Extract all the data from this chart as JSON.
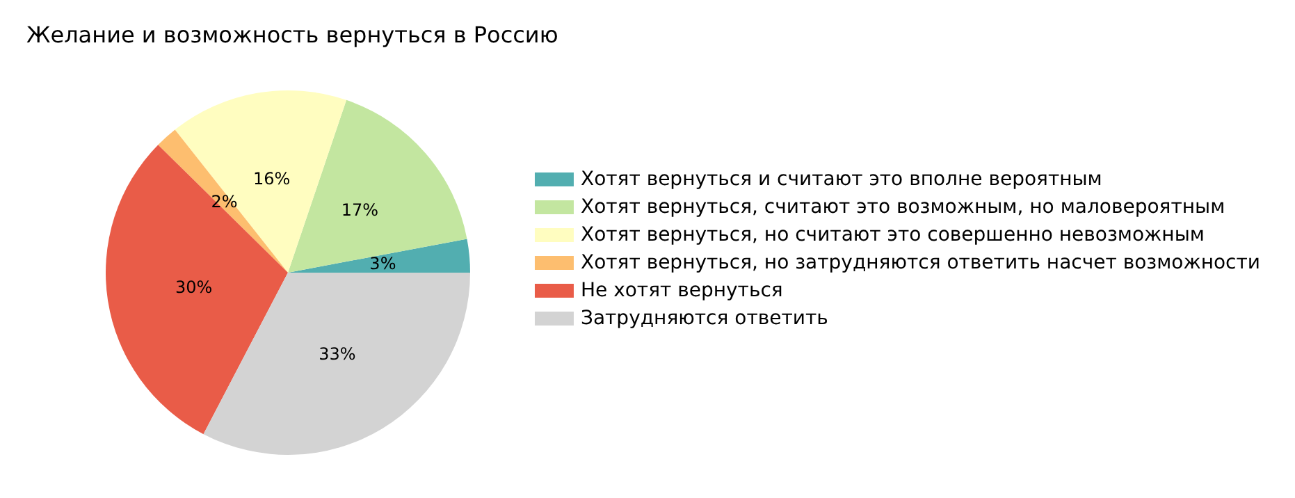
{
  "chart_data": {
    "type": "pie",
    "title": "Желание и возможность вернуться в Россию",
    "categories": [
      "Хотят вернуться и считают это вполне вероятным",
      "Хотят вернуться, считают это возможным, но маловероятным",
      "Хотят вернуться, но считают это совершенно невозможным",
      "Хотят вернуться, но затрудняются ответить насчет возможности",
      "Не хотят вернуться",
      "Затрудняются ответить"
    ],
    "values": [
      3,
      17,
      16,
      2,
      30,
      33
    ],
    "colors": [
      "#52aeb0",
      "#c3e6a0",
      "#fffdc0",
      "#fdbe6f",
      "#e95c48",
      "#d3d3d3"
    ],
    "value_labels": [
      "3%",
      "17%",
      "16%",
      "2%",
      "30%",
      "33%"
    ],
    "legend": "right"
  }
}
